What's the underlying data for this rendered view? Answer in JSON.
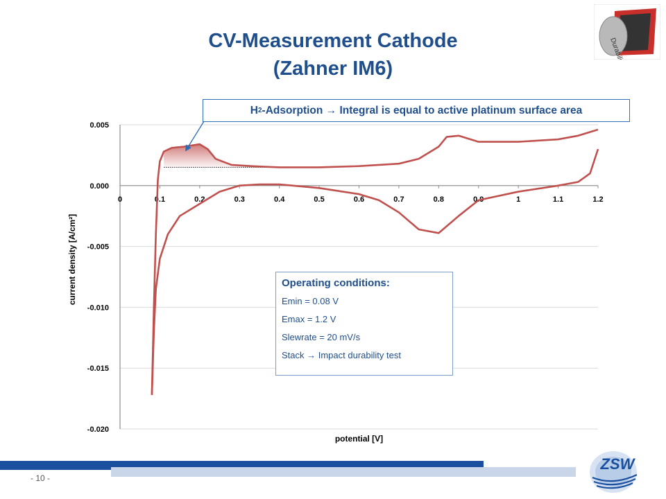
{
  "slide": {
    "title_line1": "CV-Measurement Cathode",
    "title_line2": "(Zahner IM6)",
    "page_number": "- 10 -"
  },
  "logos": {
    "durability_text": "Durability",
    "brand": "ZSW"
  },
  "annotation": {
    "text_h": "H",
    "text_sub": "2",
    "text_rest": "-Adsorption",
    "arrow": "→",
    "text_tail": "Integral is equal to active platinum surface area"
  },
  "operating_conditions": {
    "heading": "Operating conditions:",
    "lines": [
      "Emin = 0.08 V",
      "Emax = 1.2 V",
      "Slewrate = 20 mV/s",
      "Stack → Impact durability test"
    ]
  },
  "colors": {
    "title": "#1f4e8c",
    "curve": "#c0504d",
    "fill": "#e8a0a0",
    "grid": "#d9d9d9",
    "footer_dark": "#1a4fa0",
    "footer_light": "#c9d6ea"
  },
  "chart_data": {
    "type": "line",
    "title": "",
    "xlabel": "potential [V]",
    "ylabel": "current density [A/cm²]",
    "xlim": [
      0,
      1.2
    ],
    "ylim": [
      -0.02,
      0.005
    ],
    "xticks": [
      "0",
      "0.1",
      "0.2",
      "0.3",
      "0.4",
      "0.5",
      "0.6",
      "0.7",
      "0.8",
      "0.9",
      "1",
      "1.1",
      "1.2"
    ],
    "xtick_values": [
      0,
      0.1,
      0.2,
      0.3,
      0.4,
      0.5,
      0.6,
      0.7,
      0.8,
      0.9,
      1.0,
      1.1,
      1.2
    ],
    "yticks": [
      "0.005",
      "0.000",
      "-0.005",
      "-0.010",
      "-0.015",
      "-0.020"
    ],
    "ytick_values": [
      0.005,
      0.0,
      -0.005,
      -0.01,
      -0.015,
      -0.02
    ],
    "grid": true,
    "series": [
      {
        "anodic_sweep": {
          "x": [
            0.08,
            0.085,
            0.09,
            0.095,
            0.1,
            0.11,
            0.13,
            0.16,
            0.2,
            0.22,
            0.24,
            0.28,
            0.33,
            0.4,
            0.5,
            0.6,
            0.7,
            0.75,
            0.8,
            0.82,
            0.85,
            0.9,
            1.0,
            1.1,
            1.15,
            1.2
          ],
          "y": [
            -0.0172,
            -0.01,
            -0.004,
            0.0005,
            0.002,
            0.0028,
            0.0031,
            0.0032,
            0.0034,
            0.003,
            0.0022,
            0.0017,
            0.0016,
            0.0015,
            0.0015,
            0.0016,
            0.0018,
            0.0022,
            0.0032,
            0.004,
            0.0041,
            0.0036,
            0.0036,
            0.0038,
            0.0041,
            0.0046
          ]
        },
        "cathodic_sweep": {
          "x": [
            1.2,
            1.18,
            1.15,
            1.1,
            1.0,
            0.9,
            0.85,
            0.8,
            0.75,
            0.7,
            0.65,
            0.6,
            0.5,
            0.4,
            0.35,
            0.3,
            0.25,
            0.2,
            0.15,
            0.12,
            0.1,
            0.09,
            0.085,
            0.08
          ],
          "y": [
            0.003,
            0.001,
            0.0003,
            0.0,
            -0.0005,
            -0.0012,
            -0.0025,
            -0.0039,
            -0.0036,
            -0.0022,
            -0.0012,
            -0.0007,
            -0.0002,
            0.0001,
            0.0001,
            0.0,
            -0.0005,
            -0.0015,
            -0.0025,
            -0.004,
            -0.006,
            -0.0085,
            -0.012,
            -0.0172
          ]
        },
        "h_adsorption_baseline": {
          "x": [
            0.11,
            0.43
          ],
          "y": [
            0.0015,
            0.0015
          ]
        }
      }
    ]
  }
}
